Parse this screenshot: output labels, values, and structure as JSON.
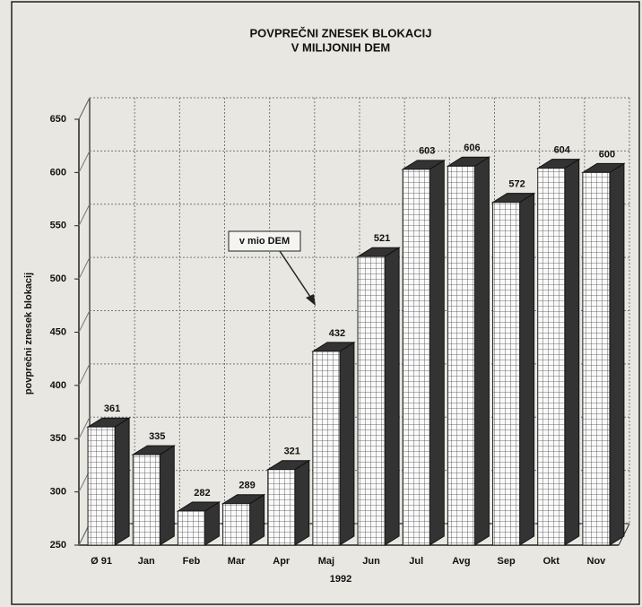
{
  "chart_data": {
    "type": "bar",
    "title": "POVPREČNI ZNESEK BLOKACIJ",
    "subtitle": "V MILIJONIH DEM",
    "y_label": "povprečni znesek blokacij",
    "x_label": "1992",
    "annotation": "v mio DEM",
    "categories": [
      "Ø 91",
      "Jan",
      "Feb",
      "Mar",
      "Apr",
      "Maj",
      "Jun",
      "Jul",
      "Avg",
      "Sep",
      "Okt",
      "Nov"
    ],
    "values": [
      361,
      335,
      282,
      289,
      321,
      432,
      521,
      603,
      606,
      572,
      604,
      600
    ],
    "color": "#ffffff",
    "side_color": "#333333",
    "ylim": [
      250,
      650
    ],
    "yticks": [
      250,
      300,
      350,
      400,
      450,
      500,
      550,
      600,
      650
    ],
    "grid": true
  }
}
